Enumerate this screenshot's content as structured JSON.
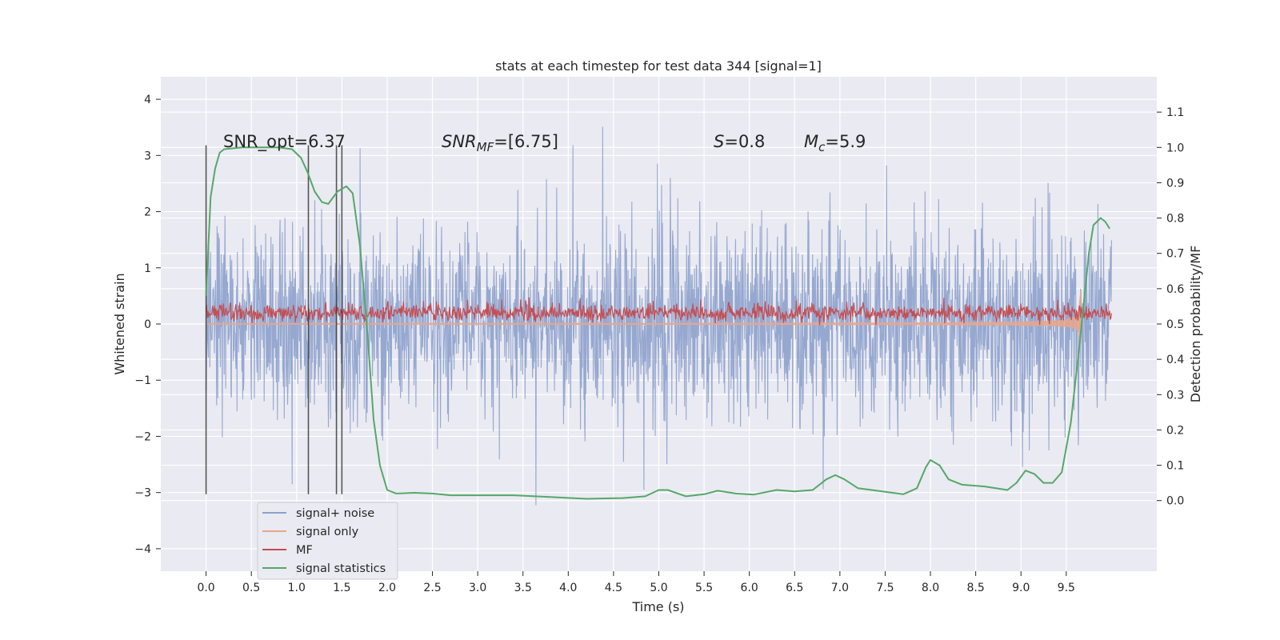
{
  "chart_data": {
    "type": "line",
    "title": "stats at each timestep for test data 344 [signal=1]",
    "xlabel": "Time (s)",
    "ylabel_left": "Whitened strain",
    "ylabel_right": "Detection probability/MF",
    "xlim": [
      -0.5,
      10.5
    ],
    "ylim_left": [
      -4.4,
      4.4
    ],
    "ylim_right": [
      -0.2,
      1.2
    ],
    "x_ticks": [
      "0.0",
      "0.5",
      "1.0",
      "1.5",
      "2.0",
      "2.5",
      "3.0",
      "3.5",
      "4.0",
      "4.5",
      "5.0",
      "5.5",
      "6.0",
      "6.5",
      "7.0",
      "7.5",
      "8.0",
      "8.5",
      "9.0",
      "9.5"
    ],
    "y_ticks_left": [
      "4",
      "3",
      "2",
      "1",
      "0",
      "−1",
      "−2",
      "−3",
      "−4"
    ],
    "y_ticks_right": [
      "1.1",
      "1.0",
      "0.9",
      "0.8",
      "0.7",
      "0.6",
      "0.5",
      "0.4",
      "0.3",
      "0.2",
      "0.1",
      "0.0"
    ],
    "grid": true,
    "legend_position": "lower-left",
    "annotations": {
      "snr_opt": "SNR_opt=6.37",
      "snr_mf_sym": "SNR",
      "snr_mf_sub": "MF",
      "snr_mf_rest": "=[6.75]",
      "s_sym": "S",
      "s_rest": "=0.8",
      "mc_sym": "M",
      "mc_sub": "c",
      "mc_rest": "=5.9"
    },
    "vertical_lines_x": [
      0.0,
      1.13,
      1.44,
      1.5
    ],
    "series": [
      {
        "name": "signal+ noise",
        "color": "#8da1cc",
        "axis": "left",
        "desc": "whitened strain noise, std ~0.85, x 0 to 10",
        "x_range": [
          0.0,
          10.0
        ]
      },
      {
        "name": "signal only",
        "color": "#e8a68c",
        "axis": "left",
        "chirp_end_x": 9.66,
        "chirp_peak_amplitude": 1.0
      },
      {
        "name": "MF",
        "color": "#c44e52",
        "axis": "left",
        "baseline": 0.2,
        "x_range": [
          0.0,
          10.0
        ]
      },
      {
        "name": "signal statistics",
        "color": "#55a868",
        "axis": "right",
        "points": [
          [
            0.0,
            0.58
          ],
          [
            0.05,
            0.86
          ],
          [
            0.1,
            0.94
          ],
          [
            0.15,
            0.985
          ],
          [
            0.2,
            0.995
          ],
          [
            0.4,
            1.0
          ],
          [
            0.8,
            1.0
          ],
          [
            0.95,
            0.995
          ],
          [
            1.05,
            0.97
          ],
          [
            1.12,
            0.93
          ],
          [
            1.2,
            0.875
          ],
          [
            1.28,
            0.845
          ],
          [
            1.35,
            0.84
          ],
          [
            1.45,
            0.875
          ],
          [
            1.55,
            0.89
          ],
          [
            1.62,
            0.87
          ],
          [
            1.7,
            0.72
          ],
          [
            1.78,
            0.48
          ],
          [
            1.85,
            0.23
          ],
          [
            1.92,
            0.1
          ],
          [
            2.0,
            0.03
          ],
          [
            2.1,
            0.02
          ],
          [
            2.3,
            0.022
          ],
          [
            2.5,
            0.02
          ],
          [
            2.7,
            0.015
          ],
          [
            3.0,
            0.015
          ],
          [
            3.4,
            0.015
          ],
          [
            3.8,
            0.01
          ],
          [
            4.2,
            0.005
          ],
          [
            4.6,
            0.007
          ],
          [
            4.85,
            0.012
          ],
          [
            5.0,
            0.03
          ],
          [
            5.1,
            0.03
          ],
          [
            5.3,
            0.012
          ],
          [
            5.5,
            0.018
          ],
          [
            5.65,
            0.028
          ],
          [
            5.85,
            0.02
          ],
          [
            6.05,
            0.017
          ],
          [
            6.3,
            0.03
          ],
          [
            6.5,
            0.026
          ],
          [
            6.7,
            0.03
          ],
          [
            6.85,
            0.06
          ],
          [
            6.95,
            0.072
          ],
          [
            7.05,
            0.06
          ],
          [
            7.2,
            0.035
          ],
          [
            7.5,
            0.025
          ],
          [
            7.7,
            0.018
          ],
          [
            7.85,
            0.035
          ],
          [
            7.95,
            0.095
          ],
          [
            8.0,
            0.115
          ],
          [
            8.1,
            0.1
          ],
          [
            8.2,
            0.06
          ],
          [
            8.35,
            0.045
          ],
          [
            8.6,
            0.04
          ],
          [
            8.85,
            0.03
          ],
          [
            8.95,
            0.05
          ],
          [
            9.05,
            0.085
          ],
          [
            9.15,
            0.075
          ],
          [
            9.25,
            0.05
          ],
          [
            9.35,
            0.05
          ],
          [
            9.45,
            0.08
          ],
          [
            9.55,
            0.22
          ],
          [
            9.65,
            0.45
          ],
          [
            9.75,
            0.7
          ],
          [
            9.8,
            0.78
          ],
          [
            9.88,
            0.8
          ],
          [
            9.93,
            0.79
          ],
          [
            9.98,
            0.77
          ]
        ]
      }
    ]
  }
}
